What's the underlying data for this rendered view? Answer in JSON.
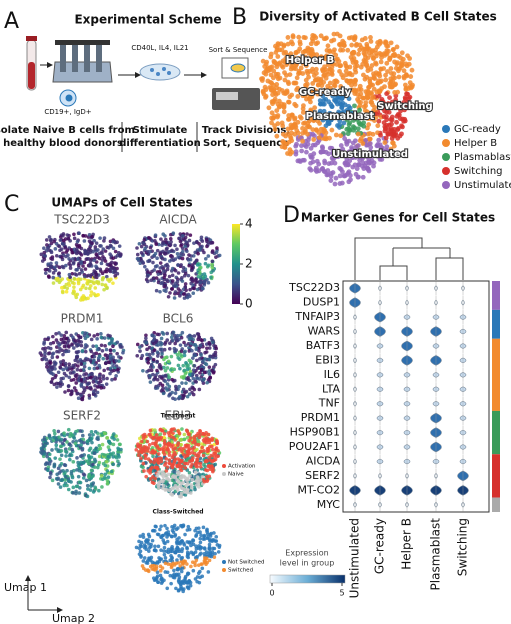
{
  "panel_a": {
    "letter": "A",
    "title": "Experimental Scheme",
    "cytokines": "CD40L, IL4, IL21",
    "sort_label": "Sort & Sequence",
    "marker_label": "CD19+, IgD+",
    "steps": [
      [
        "Isolate Naive B cells from",
        "healthy blood donors"
      ],
      [
        "Stimulate",
        "differentiation"
      ],
      [
        "Track Divisions,",
        "Sort, Sequence"
      ]
    ]
  },
  "panel_b": {
    "letter": "B",
    "title": "Diversity of Activated B Cell States",
    "cluster_labels": [
      "Helper B",
      "GC-ready",
      "Plasmablast",
      "Switching",
      "Unstimulated"
    ],
    "legend": [
      {
        "name": "GC-ready",
        "color": "#2a78b8"
      },
      {
        "name": "Helper B",
        "color": "#f28a2e"
      },
      {
        "name": "Plasmablast",
        "color": "#3a9b5a"
      },
      {
        "name": "Switching",
        "color": "#d6302c"
      },
      {
        "name": "Unstimulated",
        "color": "#9467bd"
      }
    ]
  },
  "panel_c": {
    "letter": "C",
    "title": "UMAPs of Cell States",
    "genes": [
      "TSC22D3",
      "AICDA",
      "PRDM1",
      "BCL6",
      "SERF2",
      "EBI3"
    ],
    "colorbar_ticks": [
      4,
      2,
      0
    ],
    "treatment": {
      "title": "Treatment",
      "legend": [
        "Activation",
        "Naive"
      ]
    },
    "class_switched": {
      "title": "Class-Switched",
      "legend": [
        "Not Switched",
        "Switched"
      ]
    },
    "axis_labels": [
      "Umap 1",
      "Umap 2"
    ]
  },
  "panel_d": {
    "letter": "D",
    "title": "Marker Genes for Cell States",
    "genes": [
      "TSC22D3",
      "DUSP1",
      "TNFAIP3",
      "WARS",
      "BATF3",
      "EBI3",
      "IL6",
      "LTA",
      "TNF",
      "PRDM1",
      "HSP90B1",
      "POU2AF1",
      "AICDA",
      "SERF2",
      "MT-CO2",
      "MYC"
    ],
    "groups": [
      "Unstimulated",
      "GC-ready",
      "Helper B",
      "Plasmablast",
      "Switching"
    ],
    "colorbar_title": [
      "Expression",
      "level in group"
    ],
    "colorbar_ticks": [
      0,
      5
    ]
  }
}
